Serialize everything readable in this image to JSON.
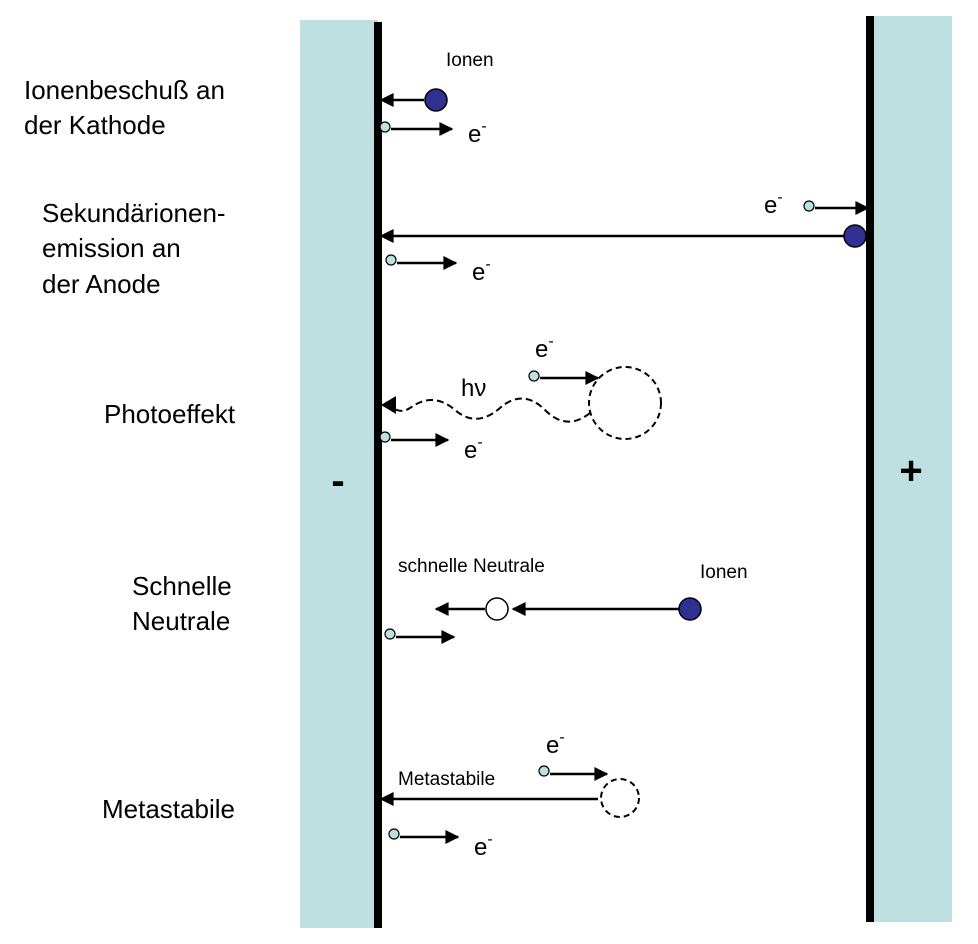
{
  "colors": {
    "electrode": "#bfe0e0",
    "wall": "#000000",
    "ion": "#2e3192",
    "electron": "#bfe0e0"
  },
  "electrodes": {
    "cathode_sign": "-",
    "anode_sign": "+"
  },
  "rows": [
    {
      "label_lines": [
        "Ionenbeschuß an",
        "der Kathode"
      ],
      "ion_label": "Ionen",
      "electron_label": "e",
      "electron_sup": "-"
    },
    {
      "label_lines": [
        "Sekundärionen-",
        "emission an",
        "der Anode"
      ],
      "incoming_electron_label": "e",
      "incoming_electron_sup": "-",
      "electron_label": "e",
      "electron_sup": "-"
    },
    {
      "label_lines": [
        "Photoeffekt"
      ],
      "photon_label": "hν",
      "incoming_electron_label": "e",
      "incoming_electron_sup": "-",
      "electron_label": "e",
      "electron_sup": "-"
    },
    {
      "label_lines": [
        "Schnelle",
        "Neutrale"
      ],
      "neutral_label": "schnelle Neutrale",
      "ion_label": "Ionen"
    },
    {
      "label_lines": [
        "Metastabile"
      ],
      "metastable_label": "Metastabile",
      "incoming_electron_label": "e",
      "incoming_electron_sup": "-",
      "electron_label": "e",
      "electron_sup": "-"
    }
  ]
}
